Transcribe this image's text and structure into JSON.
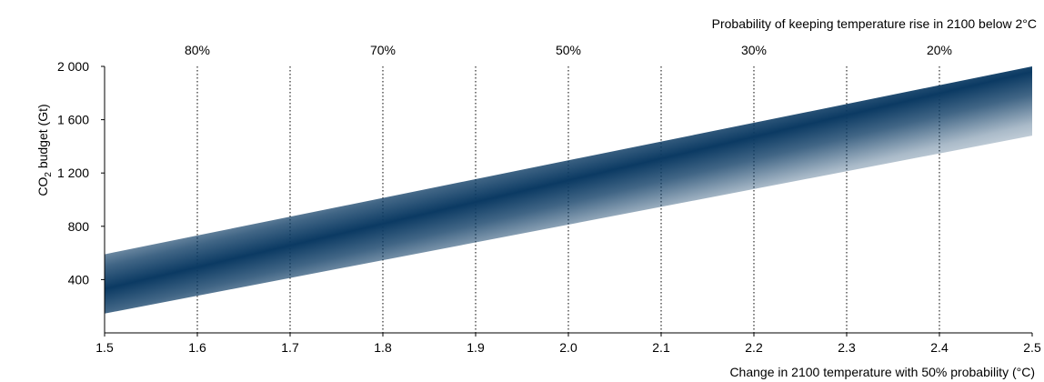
{
  "chart_data": {
    "type": "area",
    "top_axis_title": "Probability of keeping temperature rise in 2100 below 2°C",
    "xlabel": "Change in 2100 temperature with 50% probability  (°C)",
    "ylabel": {
      "prefix": "CO",
      "subscript": "2",
      "suffix": " budget (Gt)"
    },
    "xlim": [
      1.5,
      2.5
    ],
    "ylim": [
      0,
      2000
    ],
    "x_ticks": [
      1.5,
      1.6,
      1.7,
      1.8,
      1.9,
      2.0,
      2.1,
      2.2,
      2.3,
      2.4,
      2.5
    ],
    "x_tick_labels": [
      "1.5",
      "1.6",
      "1.7",
      "1.8",
      "1.9",
      "2.0",
      "2.1",
      "2.2",
      "2.3",
      "2.4",
      "2.5"
    ],
    "y_ticks": [
      400,
      800,
      1200,
      1600,
      2000
    ],
    "y_tick_labels": [
      "400",
      "800",
      "1 200",
      "1 600",
      "2 000"
    ],
    "top_ticks": [
      {
        "x": 1.6,
        "label": "80%"
      },
      {
        "x": 1.8,
        "label": "70%"
      },
      {
        "x": 2.0,
        "label": "50%"
      },
      {
        "x": 2.2,
        "label": "30%"
      },
      {
        "x": 2.4,
        "label": "20%"
      }
    ],
    "gridlines": "vertical dotted at each x tick",
    "band": {
      "x": [
        1.5,
        2.5
      ],
      "upper": [
        590,
        2000
      ],
      "central": [
        330,
        1960
      ],
      "lower": [
        145,
        1480
      ]
    },
    "colors": {
      "band_center": "#0b3a63",
      "band_edge": "#ffffff",
      "axis": "#000000",
      "grid": "#000000"
    }
  }
}
